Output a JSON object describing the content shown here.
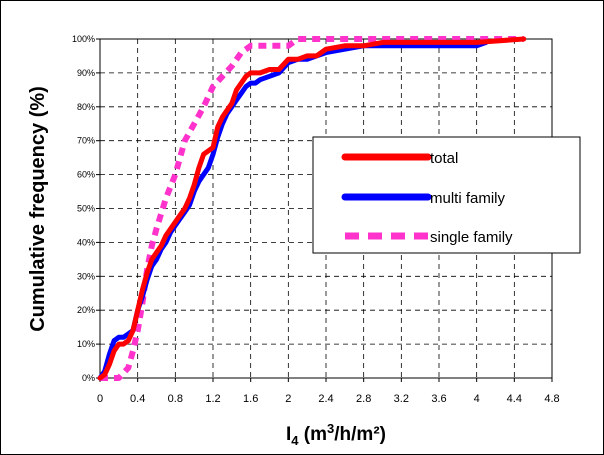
{
  "chart_data": {
    "type": "line",
    "title": "",
    "xlabel": "I",
    "xlabel_sub": "4",
    "xlabel_pre_sup": " (m",
    "xlabel_sup": "3",
    "xlabel_post": "/h/m²)",
    "ylabel": "Cumulative frequency (%)",
    "xlim": [
      0,
      4.8
    ],
    "ylim": [
      0,
      100
    ],
    "x_ticks": [
      "0",
      "0.4",
      "0.8",
      "1.2",
      "1.6",
      "2",
      "2.4",
      "2.8",
      "3.2",
      "3.6",
      "4",
      "4.4",
      "4.8"
    ],
    "y_ticks": [
      "0%",
      "10%",
      "20%",
      "30%",
      "40%",
      "50%",
      "60%",
      "70%",
      "80%",
      "90%",
      "100%"
    ],
    "grid": true,
    "legend_position": "right",
    "series": [
      {
        "name": "total",
        "color": "#ff0000",
        "style": "solid",
        "x": [
          0,
          0.05,
          0.1,
          0.15,
          0.2,
          0.25,
          0.3,
          0.35,
          0.4,
          0.45,
          0.5,
          0.55,
          0.6,
          0.65,
          0.7,
          0.75,
          0.8,
          0.85,
          0.9,
          0.95,
          1.0,
          1.05,
          1.1,
          1.15,
          1.2,
          1.25,
          1.3,
          1.35,
          1.4,
          1.45,
          1.5,
          1.55,
          1.6,
          1.65,
          1.7,
          1.8,
          1.9,
          2.0,
          2.1,
          2.2,
          2.3,
          2.4,
          2.6,
          2.8,
          3.0,
          3.5,
          4.0,
          4.5
        ],
        "y": [
          0,
          1,
          4,
          8,
          10,
          10,
          11,
          14,
          20,
          26,
          31,
          35,
          37,
          39,
          42,
          44,
          46,
          48,
          50,
          53,
          57,
          62,
          66,
          67,
          68,
          74,
          77,
          79,
          81,
          85,
          87,
          89,
          90,
          90,
          90,
          91,
          91,
          94,
          94,
          95,
          95,
          97,
          98,
          98,
          99,
          99,
          99,
          100
        ]
      },
      {
        "name": "multi family",
        "color": "#0000ff",
        "style": "solid",
        "x": [
          0,
          0.05,
          0.1,
          0.15,
          0.2,
          0.25,
          0.3,
          0.35,
          0.4,
          0.45,
          0.5,
          0.55,
          0.6,
          0.65,
          0.7,
          0.75,
          0.8,
          0.85,
          0.9,
          0.95,
          1.0,
          1.05,
          1.1,
          1.15,
          1.2,
          1.25,
          1.3,
          1.35,
          1.4,
          1.45,
          1.5,
          1.55,
          1.6,
          1.65,
          1.7,
          1.8,
          1.9,
          2.0,
          2.1,
          2.2,
          2.3,
          2.4,
          2.6,
          2.8,
          3.0,
          3.5,
          4.0,
          4.1
        ],
        "y": [
          0,
          2,
          7,
          11,
          12,
          12,
          13,
          14,
          20,
          24,
          29,
          33,
          35,
          38,
          40,
          43,
          45,
          47,
          49,
          51,
          55,
          58,
          60,
          62,
          66,
          71,
          75,
          78,
          80,
          82,
          84,
          86,
          87,
          87,
          88,
          89,
          90,
          93,
          94,
          94,
          95,
          96,
          97,
          98,
          98,
          98,
          98,
          99
        ]
      },
      {
        "name": "single family",
        "color": "#ff33cc",
        "style": "dashed",
        "x": [
          0,
          0.1,
          0.2,
          0.3,
          0.35,
          0.4,
          0.45,
          0.5,
          0.55,
          0.6,
          0.7,
          0.8,
          0.9,
          1.0,
          1.1,
          1.2,
          1.3,
          1.4,
          1.5,
          1.6,
          1.7,
          1.8,
          2.0,
          2.1,
          2.5,
          3.0,
          3.5,
          4.0,
          4.5
        ],
        "y": [
          0,
          0,
          0,
          3,
          8,
          14,
          22,
          32,
          39,
          44,
          53,
          60,
          70,
          75,
          80,
          86,
          89,
          92,
          96,
          98,
          98,
          98,
          98,
          100,
          100,
          100,
          100,
          100,
          100
        ]
      }
    ]
  }
}
